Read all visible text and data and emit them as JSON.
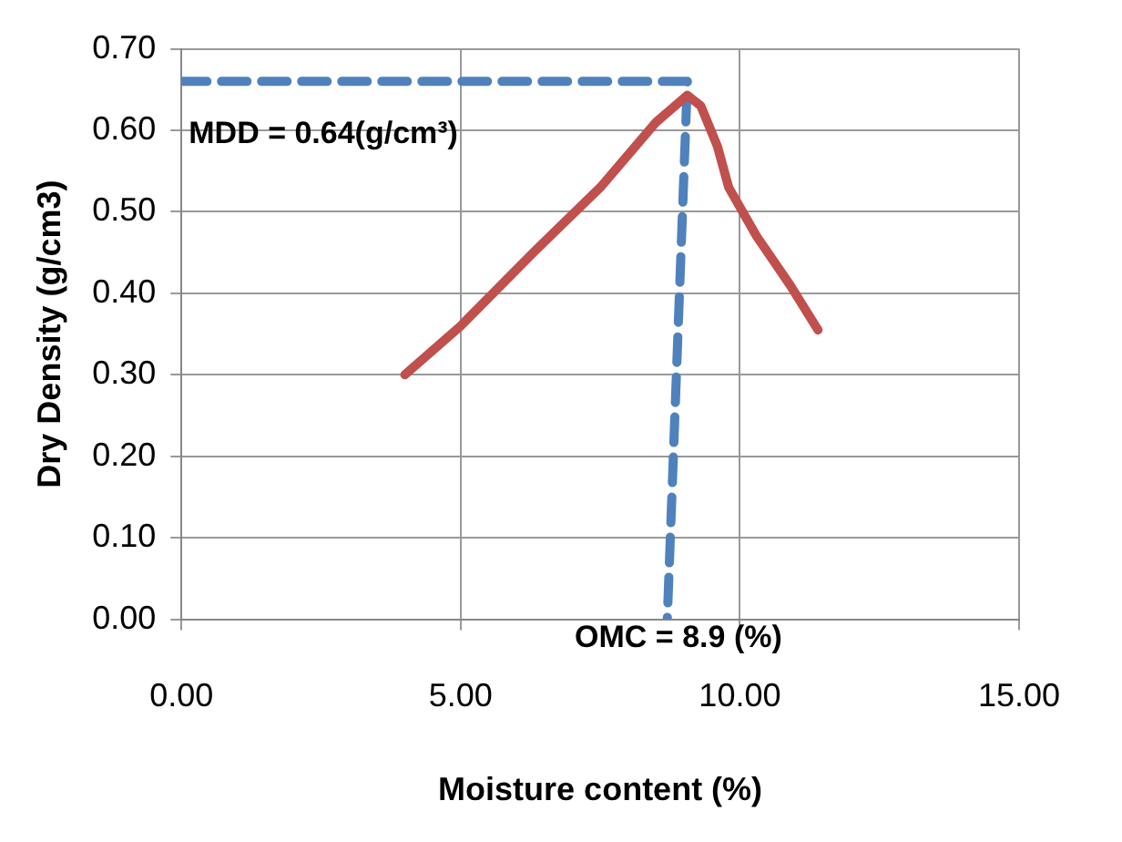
{
  "chart_data": {
    "type": "line",
    "xlabel": "Moisture content (%)",
    "ylabel": "Dry Density (g/cm3)",
    "xlim": [
      0,
      15
    ],
    "xticks": [
      {
        "value": 0,
        "label": "0.00"
      },
      {
        "value": 5,
        "label": "5.00"
      },
      {
        "value": 10,
        "label": "10.00"
      },
      {
        "value": 15,
        "label": "15.00"
      }
    ],
    "ylim": [
      0,
      0.7
    ],
    "yticks": [
      {
        "value": 0,
        "label": "0.00"
      },
      {
        "value": 0.1,
        "label": "0.10"
      },
      {
        "value": 0.2,
        "label": "0.20"
      },
      {
        "value": 0.3,
        "label": "0.30"
      },
      {
        "value": 0.4,
        "label": "0.40"
      },
      {
        "value": 0.5,
        "label": "0.50"
      },
      {
        "value": 0.6,
        "label": "0.60"
      },
      {
        "value": 0.7,
        "label": "0.70"
      }
    ],
    "grid": true,
    "marker": "none",
    "series": [
      {
        "type": "line",
        "color": "#c0504d",
        "line_style": "solid",
        "x": [
          4.0,
          5.0,
          6.3,
          7.5,
          8.5,
          9.06,
          9.3,
          9.6,
          9.8,
          10.3,
          10.9,
          11.4
        ],
        "values": [
          0.3,
          0.36,
          0.45,
          0.53,
          0.61,
          0.643,
          0.63,
          0.58,
          0.53,
          0.47,
          0.41,
          0.355
        ]
      },
      {
        "type": "line",
        "color": "#4f81bd",
        "line_style": "dashed",
        "x": [
          0,
          9.06,
          8.7
        ],
        "values": [
          0.66,
          0.66,
          0
        ]
      }
    ],
    "annotations": [
      "MDD = 0.64(g/cm³)",
      {
        "text": "OMC = 8.9 (%)",
        "x": 8.9,
        "y": 0
      }
    ]
  }
}
